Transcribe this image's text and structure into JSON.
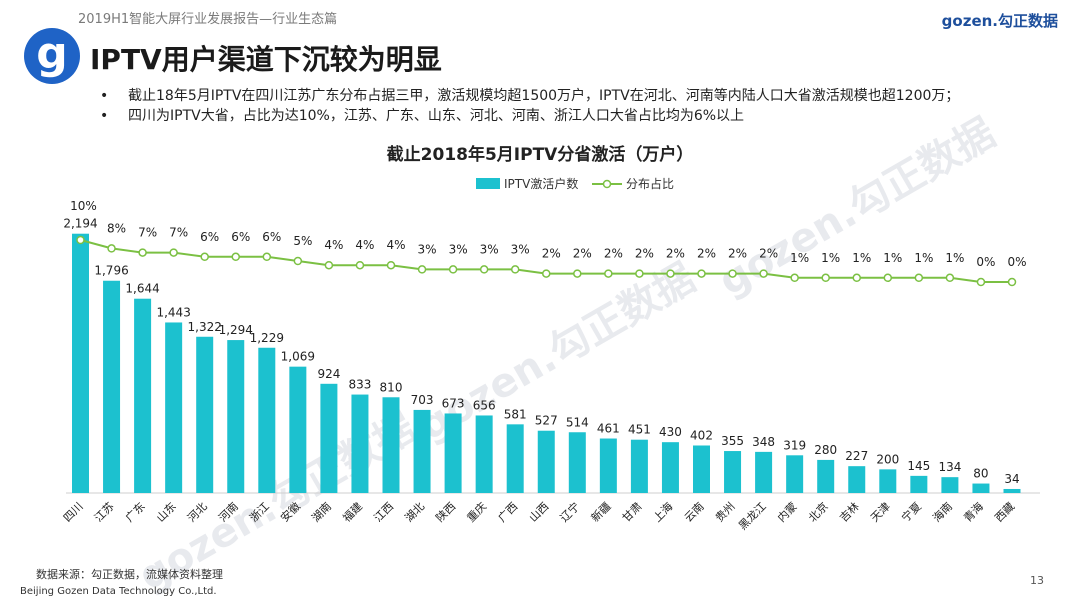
{
  "header": {
    "report_title": "2019H1智能大屏行业发展报告—行业生态篇",
    "brand": "gozen.勾正数据",
    "logo_letter": "g"
  },
  "page_title": "IPTV用户渠道下沉较为明显",
  "bullets": [
    "截止18年5月IPTV在四川江苏广东分布占据三甲，激活规模均超1500万户，IPTV在河北、河南等内陆人口大省激活规模也超1200万；",
    "四川为IPTV大省，占比为达10%，江苏、广东、山东、河北、河南、浙江人口大省占比均为6%以上"
  ],
  "footer": {
    "source": "数据来源：勾正数据，流媒体资料整理",
    "company": "Beijing Gozen Data Technology Co.,Ltd.",
    "page_number": "13"
  },
  "watermark": "gozen.勾正数据",
  "chart_data": {
    "type": "bar",
    "title": "截止2018年5月IPTV分省激活（万户）",
    "categories": [
      "四川",
      "江苏",
      "广东",
      "山东",
      "河北",
      "河南",
      "浙江",
      "安徽",
      "湖南",
      "福建",
      "江西",
      "湖北",
      "陕西",
      "重庆",
      "广西",
      "山西",
      "辽宁",
      "新疆",
      "甘肃",
      "上海",
      "云南",
      "贵州",
      "黑龙江",
      "内蒙",
      "北京",
      "吉林",
      "天津",
      "宁夏",
      "海南",
      "青海",
      "西藏"
    ],
    "series": [
      {
        "name": "IPTV激活户数",
        "type": "bar",
        "color": "#1cc1cf",
        "values": [
          2194,
          1796,
          1644,
          1443,
          1322,
          1294,
          1229,
          1069,
          924,
          833,
          810,
          703,
          673,
          656,
          581,
          527,
          514,
          461,
          451,
          430,
          402,
          355,
          348,
          319,
          280,
          227,
          200,
          145,
          134,
          80,
          34
        ],
        "labels": [
          "2,194",
          "1,796",
          "1,644",
          "1,443",
          "1,322",
          "1,294",
          "1,229",
          "1,069",
          "924",
          "833",
          "810",
          "703",
          "673",
          "656",
          "581",
          "527",
          "514",
          "461",
          "451",
          "430",
          "402",
          "355",
          "348",
          "319",
          "280",
          "227",
          "200",
          "145",
          "134",
          "80",
          "34"
        ]
      },
      {
        "name": "分布占比",
        "type": "line",
        "color": "#7bc043",
        "values": [
          10,
          8,
          7,
          7,
          6,
          6,
          6,
          5,
          4,
          4,
          4,
          3,
          3,
          3,
          3,
          2,
          2,
          2,
          2,
          2,
          2,
          2,
          2,
          1,
          1,
          1,
          1,
          1,
          1,
          0,
          0
        ],
        "labels": [
          "10%",
          "8%",
          "7%",
          "7%",
          "6%",
          "6%",
          "6%",
          "5%",
          "4%",
          "4%",
          "4%",
          "3%",
          "3%",
          "3%",
          "3%",
          "2%",
          "2%",
          "2%",
          "2%",
          "2%",
          "2%",
          "2%",
          "2%",
          "1%",
          "1%",
          "1%",
          "1%",
          "1%",
          "1%",
          "0%",
          "0%"
        ]
      }
    ],
    "legend_position": "top-center",
    "grid": false
  }
}
